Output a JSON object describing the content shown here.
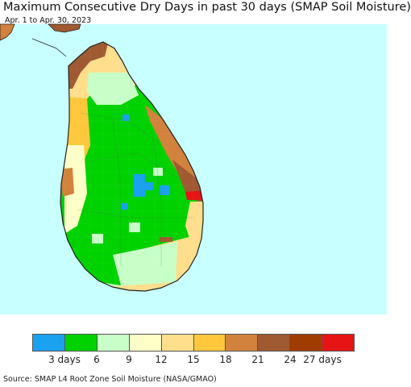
{
  "title": "Maximum Consecutive Dry Days in past 30 days (SMAP Soil Moisture)",
  "subtitle": "Apr. 1 to Apr. 30, 2023",
  "source": "Source: SMAP L4 Root Zone Soil Moisture (NASA/GMAO)",
  "colors": {
    "ocean": "#c8ffff",
    "land_outline": "#222222"
  },
  "legend": {
    "colors": [
      "#1aa1f0",
      "#00d200",
      "#c8ffc8",
      "#ffffc8",
      "#ffde8c",
      "#ffc83c",
      "#d2823c",
      "#a05a32",
      "#a03c00",
      "#e61414"
    ],
    "ticks": [
      "3 days",
      "6",
      "9",
      "12",
      "15",
      "18",
      "21",
      "24",
      "27 days"
    ]
  }
}
